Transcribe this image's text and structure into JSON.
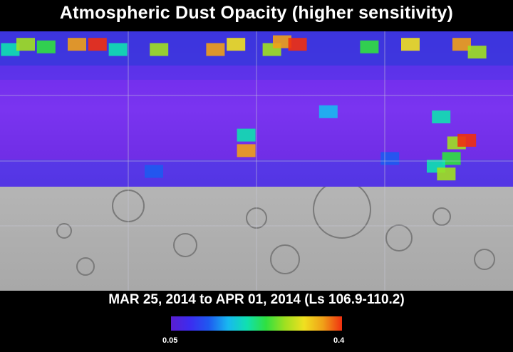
{
  "title": "Atmospheric Dust Opacity (higher sensitivity)",
  "date_range": "MAR 25, 2014 to APR 01, 2014 (Ls 106.9-110.2)",
  "colorbar": {
    "min_label": "0.05",
    "max_label": "0.4",
    "min": 0.05,
    "max": 0.4,
    "colors": [
      "#5a1ed0",
      "#3c2cf0",
      "#1e5af0",
      "#18b8f0",
      "#10e0b0",
      "#30e040",
      "#a0e020",
      "#f0e020",
      "#f0a018",
      "#f03010"
    ]
  },
  "map": {
    "background_relief": "#8f8f8f",
    "grid_color": "#c8c8d8",
    "dust_cells": [
      {
        "lon": 0.02,
        "lat": 0.07,
        "v": 0.22
      },
      {
        "lon": 0.05,
        "lat": 0.05,
        "v": 0.3
      },
      {
        "lon": 0.09,
        "lat": 0.06,
        "v": 0.25
      },
      {
        "lon": 0.15,
        "lat": 0.05,
        "v": 0.38
      },
      {
        "lon": 0.19,
        "lat": 0.05,
        "v": 0.4
      },
      {
        "lon": 0.23,
        "lat": 0.07,
        "v": 0.2
      },
      {
        "lon": 0.31,
        "lat": 0.07,
        "v": 0.27
      },
      {
        "lon": 0.42,
        "lat": 0.07,
        "v": 0.35
      },
      {
        "lon": 0.46,
        "lat": 0.05,
        "v": 0.32
      },
      {
        "lon": 0.53,
        "lat": 0.07,
        "v": 0.28
      },
      {
        "lon": 0.55,
        "lat": 0.04,
        "v": 0.37
      },
      {
        "lon": 0.58,
        "lat": 0.05,
        "v": 0.4
      },
      {
        "lon": 0.72,
        "lat": 0.06,
        "v": 0.25
      },
      {
        "lon": 0.8,
        "lat": 0.05,
        "v": 0.32
      },
      {
        "lon": 0.9,
        "lat": 0.05,
        "v": 0.38
      },
      {
        "lon": 0.93,
        "lat": 0.08,
        "v": 0.28
      },
      {
        "lon": 0.48,
        "lat": 0.4,
        "v": 0.22
      },
      {
        "lon": 0.48,
        "lat": 0.46,
        "v": 0.37
      },
      {
        "lon": 0.64,
        "lat": 0.31,
        "v": 0.18
      },
      {
        "lon": 0.86,
        "lat": 0.33,
        "v": 0.2
      },
      {
        "lon": 0.89,
        "lat": 0.43,
        "v": 0.27
      },
      {
        "lon": 0.91,
        "lat": 0.42,
        "v": 0.39
      },
      {
        "lon": 0.88,
        "lat": 0.49,
        "v": 0.26
      },
      {
        "lon": 0.85,
        "lat": 0.52,
        "v": 0.2
      },
      {
        "lon": 0.87,
        "lat": 0.55,
        "v": 0.3
      },
      {
        "lon": 0.76,
        "lat": 0.49,
        "v": 0.14
      },
      {
        "lon": 0.3,
        "lat": 0.54,
        "v": 0.12
      }
    ]
  }
}
